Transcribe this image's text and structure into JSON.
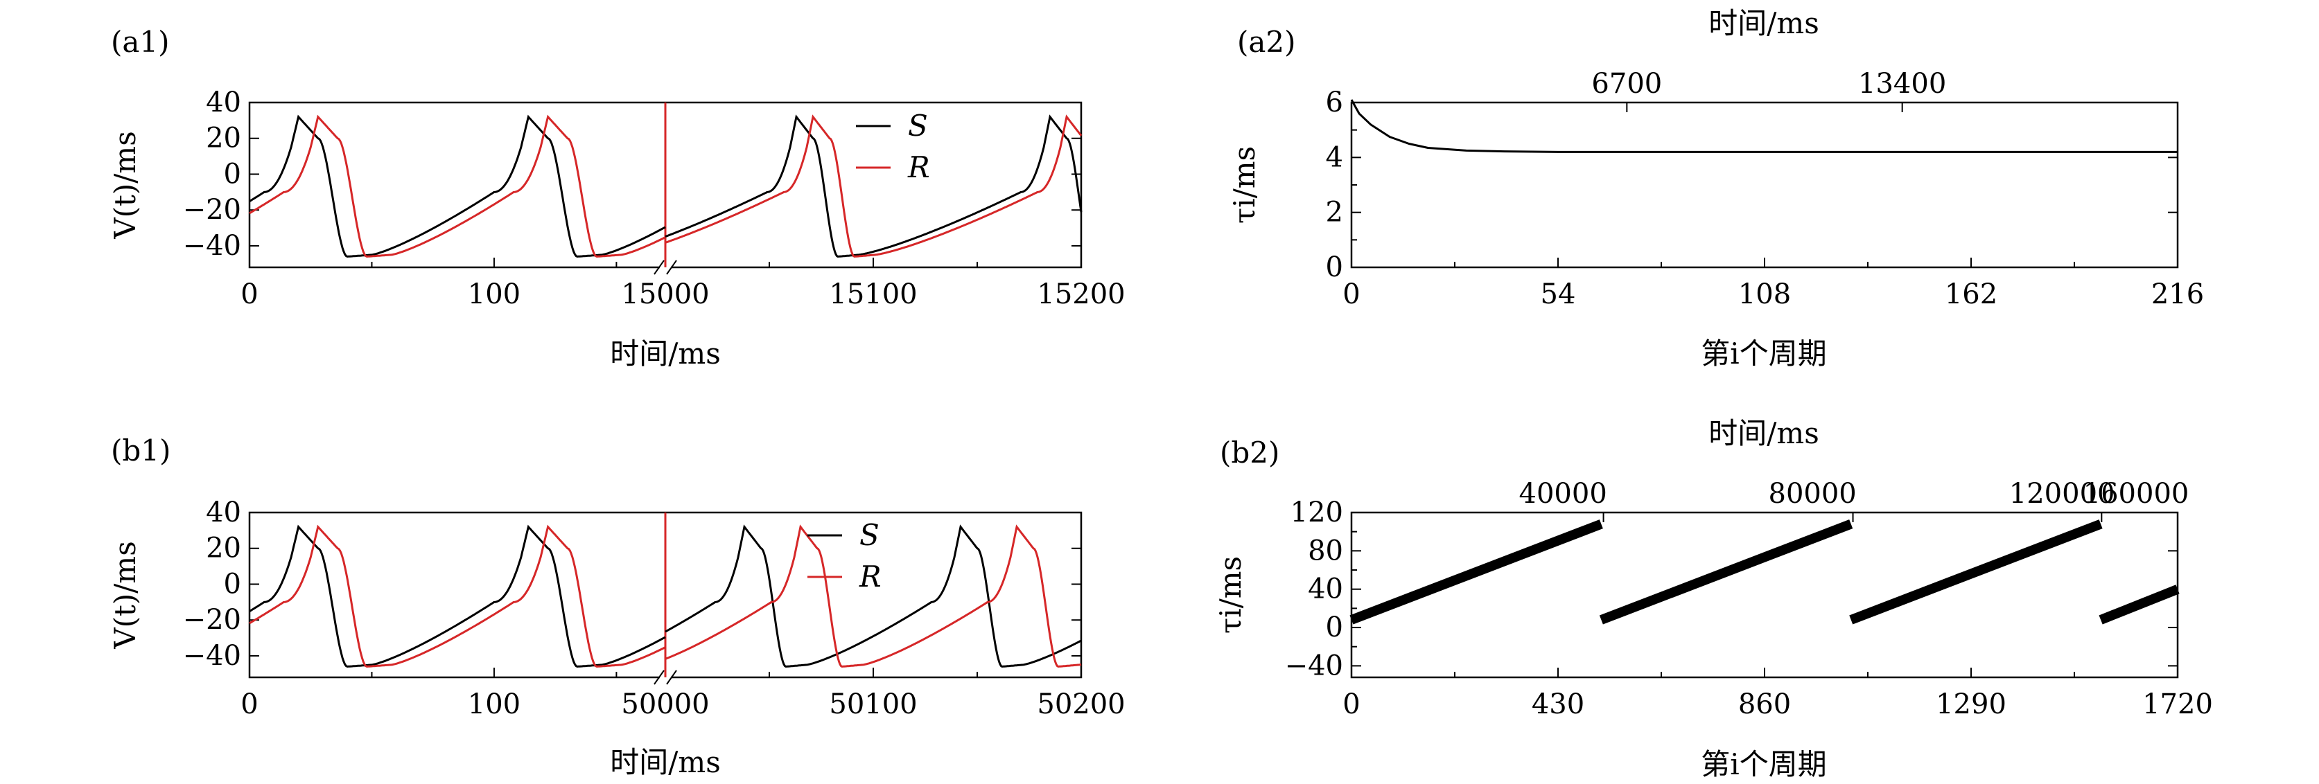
{
  "chart_data": [
    {
      "id": "a1",
      "panel_label": "(a1)",
      "type": "line",
      "xlabel": "时间/ms",
      "ylabel": "V(t)/ms",
      "ylim": [
        -52,
        40
      ],
      "yticks": [
        "40",
        "20",
        "0",
        "−20",
        "−40"
      ],
      "x_segments": [
        [
          0,
          170
        ],
        [
          15000,
          15200
        ]
      ],
      "xticks": [
        "0",
        "100",
        "15000",
        "15100",
        "15200"
      ],
      "legend": {
        "placement": "top-right-inner",
        "entries": [
          "S",
          "R"
        ]
      },
      "series": [
        {
          "name": "S",
          "color": "#000000",
          "segment1_peaks": [
            20,
            114
          ],
          "segment2_peaks": [
            15063,
            15185
          ]
        },
        {
          "name": "R",
          "color": "#d62728",
          "segment1_peaks": [
            28,
            122
          ],
          "segment2_peaks": [
            15071,
            15193
          ]
        }
      ]
    },
    {
      "id": "a2",
      "panel_label": "(a2)",
      "type": "line",
      "xlabel": "第i个周期",
      "ylabel": "τi/ms",
      "top_xlabel": "时间/ms",
      "xlim": [
        0,
        216
      ],
      "ylim": [
        0,
        6
      ],
      "xticks": [
        "0",
        "54",
        "108",
        "162",
        "216"
      ],
      "yticks": [
        "6",
        "4",
        "2",
        "0"
      ],
      "top_xticks": [
        "6700",
        "13400"
      ],
      "series": [
        {
          "name": "",
          "color": "#000000",
          "x": [
            0,
            2,
            5,
            10,
            15,
            20,
            30,
            40,
            54,
            80,
            108,
            162,
            216
          ],
          "y": [
            6.1,
            5.6,
            5.2,
            4.75,
            4.5,
            4.35,
            4.25,
            4.22,
            4.2,
            4.2,
            4.2,
            4.2,
            4.2
          ]
        }
      ]
    },
    {
      "id": "b1",
      "panel_label": "(b1)",
      "type": "line",
      "xlabel": "时间/ms",
      "ylabel": "V(t)/ms",
      "ylim": [
        -52,
        40
      ],
      "yticks": [
        "40",
        "20",
        "0",
        "−20",
        "−40"
      ],
      "x_segments": [
        [
          0,
          170
        ],
        [
          50000,
          50200
        ]
      ],
      "xticks": [
        "0",
        "100",
        "50000",
        "50100",
        "50200"
      ],
      "legend": {
        "placement": "top-right-inner",
        "entries": [
          "S",
          "R"
        ]
      },
      "series": [
        {
          "name": "S",
          "color": "#000000",
          "segment1_peaks": [
            20,
            114
          ],
          "segment2_peaks": [
            50038,
            50142
          ]
        },
        {
          "name": "R",
          "color": "#d62728",
          "segment1_peaks": [
            28,
            122
          ],
          "segment2_peaks": [
            50065,
            50169
          ]
        }
      ]
    },
    {
      "id": "b2",
      "panel_label": "(b2)",
      "type": "line",
      "xlabel": "第i个周期",
      "ylabel": "τi/ms",
      "top_xlabel": "时间/ms",
      "xlim": [
        0,
        1720
      ],
      "ylim": [
        -52,
        120
      ],
      "xticks": [
        "0",
        "430",
        "860",
        "1290",
        "1720"
      ],
      "yticks": [
        "120",
        "80",
        "40",
        "0",
        "−40"
      ],
      "top_xticks": [
        "40000",
        "80000",
        "120000",
        "160000"
      ],
      "series": [
        {
          "name": "",
          "color": "#000000",
          "segments": [
            [
              [
                0,
                8
              ],
              [
                520,
                108
              ]
            ],
            [
              [
                520,
                8
              ],
              [
                1040,
                108
              ]
            ],
            [
              [
                1040,
                8
              ],
              [
                1560,
                108
              ]
            ],
            [
              [
                1560,
                8
              ],
              [
                1720,
                40
              ]
            ]
          ]
        }
      ]
    }
  ]
}
